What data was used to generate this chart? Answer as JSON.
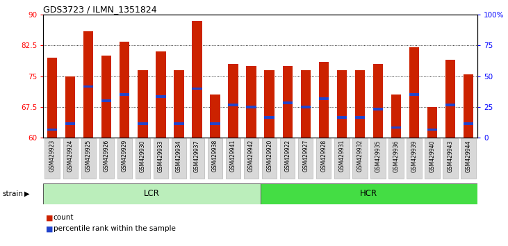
{
  "title": "GDS3723 / ILMN_1351824",
  "samples": [
    "GSM429923",
    "GSM429924",
    "GSM429925",
    "GSM429926",
    "GSM429929",
    "GSM429930",
    "GSM429933",
    "GSM429934",
    "GSM429937",
    "GSM429938",
    "GSM429941",
    "GSM429942",
    "GSM429920",
    "GSM429922",
    "GSM429927",
    "GSM429928",
    "GSM429931",
    "GSM429932",
    "GSM429935",
    "GSM429936",
    "GSM429939",
    "GSM429940",
    "GSM429943",
    "GSM429944"
  ],
  "count_values": [
    79.5,
    75.0,
    86.0,
    80.0,
    83.5,
    76.5,
    81.0,
    76.5,
    88.5,
    70.5,
    78.0,
    77.5,
    76.5,
    77.5,
    76.5,
    78.5,
    76.5,
    76.5,
    78.0,
    70.5,
    82.0,
    67.5,
    79.0,
    75.5
  ],
  "percentile_values": [
    62.0,
    63.5,
    72.5,
    69.0,
    70.5,
    63.5,
    70.0,
    63.5,
    72.0,
    63.5,
    68.0,
    67.5,
    65.0,
    68.5,
    67.5,
    69.5,
    65.0,
    65.0,
    67.0,
    62.5,
    70.5,
    62.0,
    68.0,
    63.5
  ],
  "lcr_count": 12,
  "hcr_count": 12,
  "ylim": [
    60,
    90
  ],
  "yticks": [
    60,
    67.5,
    75,
    82.5,
    90
  ],
  "ytick_labels": [
    "60",
    "67.5",
    "75",
    "82.5",
    "90"
  ],
  "right_yticks": [
    0,
    25,
    50,
    75,
    100
  ],
  "bar_color": "#cc2200",
  "blue_color": "#2244cc",
  "lcr_color": "#bbeebb",
  "hcr_color": "#44dd44",
  "bar_width": 0.55,
  "bar_bottom": 60
}
